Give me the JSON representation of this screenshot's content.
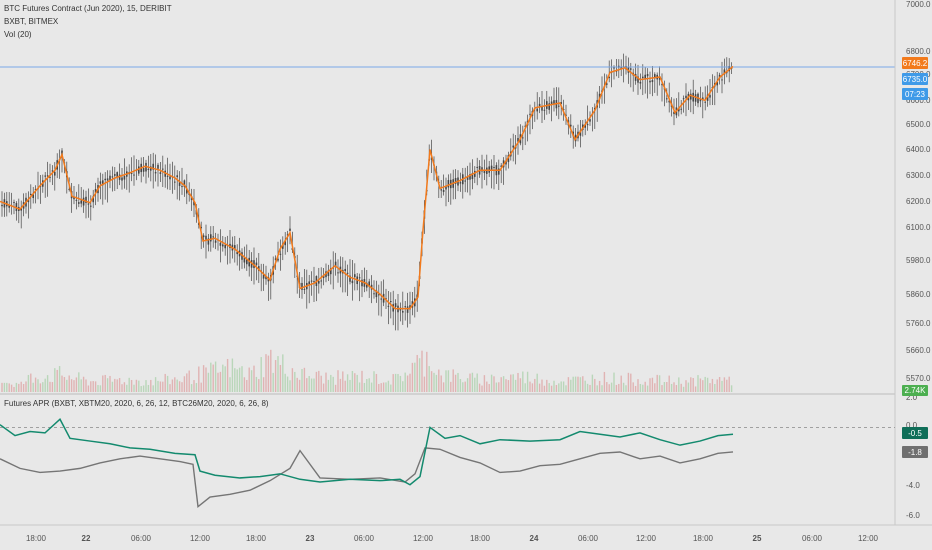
{
  "chart_data": [
    {
      "type": "candlestick",
      "title": "BTC Futures Contract (Jun 2020), 15, DERIBIT",
      "overlay": "BXBT, BITMEX",
      "volume_label": "Vol (20)",
      "ylim": [
        5520,
        7000
      ],
      "y_ticks": [
        "7000.0",
        "6800.0",
        "6700.0",
        "6600.0",
        "6500.0",
        "6400.0",
        "6300.0",
        "6200.0",
        "6100.0",
        "5980.0",
        "5860.0",
        "5760.0",
        "5660.0",
        "5570.0"
      ],
      "price_line": 6746.2,
      "badges": {
        "last_price": "6746.2",
        "bxbt_price": "6735.0",
        "countdown": "07:23",
        "volume": "2.74K"
      },
      "price_series_orange": [
        [
          0,
          6210
        ],
        [
          20,
          6180
        ],
        [
          40,
          6270
        ],
        [
          55,
          6330
        ],
        [
          62,
          6390
        ],
        [
          72,
          6230
        ],
        [
          90,
          6205
        ],
        [
          100,
          6270
        ],
        [
          115,
          6300
        ],
        [
          130,
          6320
        ],
        [
          145,
          6345
        ],
        [
          160,
          6330
        ],
        [
          175,
          6300
        ],
        [
          185,
          6270
        ],
        [
          195,
          6205
        ],
        [
          203,
          6060
        ],
        [
          215,
          6070
        ],
        [
          235,
          6030
        ],
        [
          255,
          5970
        ],
        [
          270,
          5920
        ],
        [
          280,
          6030
        ],
        [
          290,
          6090
        ],
        [
          300,
          5890
        ],
        [
          315,
          5910
        ],
        [
          335,
          5970
        ],
        [
          350,
          5930
        ],
        [
          365,
          5910
        ],
        [
          380,
          5870
        ],
        [
          395,
          5820
        ],
        [
          410,
          5820
        ],
        [
          418,
          5860
        ],
        [
          423,
          6100
        ],
        [
          430,
          6410
        ],
        [
          440,
          6260
        ],
        [
          460,
          6290
        ],
        [
          480,
          6330
        ],
        [
          500,
          6330
        ],
        [
          520,
          6450
        ],
        [
          535,
          6580
        ],
        [
          560,
          6600
        ],
        [
          575,
          6450
        ],
        [
          595,
          6570
        ],
        [
          610,
          6720
        ],
        [
          625,
          6740
        ],
        [
          640,
          6690
        ],
        [
          660,
          6700
        ],
        [
          675,
          6560
        ],
        [
          690,
          6630
        ],
        [
          705,
          6610
        ],
        [
          720,
          6700
        ],
        [
          733,
          6746
        ]
      ],
      "volume_series": [
        [
          5,
          0.3
        ],
        [
          20,
          0.2
        ],
        [
          30,
          0.4
        ],
        [
          60,
          0.5
        ],
        [
          90,
          0.3
        ],
        [
          120,
          0.35
        ],
        [
          150,
          0.3
        ],
        [
          185,
          0.4
        ],
        [
          200,
          0.5
        ],
        [
          230,
          0.7
        ],
        [
          250,
          0.5
        ],
        [
          270,
          0.95
        ],
        [
          300,
          0.5
        ],
        [
          330,
          0.4
        ],
        [
          360,
          0.45
        ],
        [
          395,
          0.35
        ],
        [
          420,
          0.85
        ],
        [
          430,
          1.0
        ],
        [
          440,
          0.5
        ],
        [
          480,
          0.35
        ],
        [
          520,
          0.45
        ],
        [
          560,
          0.3
        ],
        [
          600,
          0.4
        ],
        [
          640,
          0.35
        ],
        [
          680,
          0.3
        ],
        [
          720,
          0.35
        ]
      ]
    },
    {
      "type": "line",
      "title": "Futures APR (BXBT, XBTM20, 2020, 6, 26, 12, BTC26M20, 2020, 6, 26, 8)",
      "ylim": [
        -7,
        2.3
      ],
      "y_ticks": [
        "2.0",
        "0.0",
        "-4.0",
        "-6.0"
      ],
      "series": [
        {
          "color": "#138a6e",
          "values": [
            [
              0,
              0.2
            ],
            [
              15,
              -0.6
            ],
            [
              30,
              -0.3
            ],
            [
              45,
              -0.4
            ],
            [
              60,
              0.6
            ],
            [
              70,
              -0.8
            ],
            [
              90,
              -1.0
            ],
            [
              110,
              -1.2
            ],
            [
              130,
              -1.5
            ],
            [
              150,
              -1.6
            ],
            [
              175,
              -1.9
            ],
            [
              195,
              -2.0
            ],
            [
              200,
              -3.2
            ],
            [
              215,
              -3.5
            ],
            [
              240,
              -3.7
            ],
            [
              260,
              -3.6
            ],
            [
              280,
              -3.4
            ],
            [
              300,
              -3.8
            ],
            [
              320,
              -4.0
            ],
            [
              350,
              -3.8
            ],
            [
              380,
              -3.9
            ],
            [
              400,
              -3.8
            ],
            [
              410,
              -4.2
            ],
            [
              420,
              -3.6
            ],
            [
              430,
              0.0
            ],
            [
              445,
              -0.8
            ],
            [
              460,
              -0.6
            ],
            [
              480,
              -1.2
            ],
            [
              500,
              -0.9
            ],
            [
              530,
              -1.0
            ],
            [
              560,
              -0.9
            ],
            [
              580,
              -0.3
            ],
            [
              600,
              -0.5
            ],
            [
              620,
              -0.7
            ],
            [
              640,
              -0.4
            ],
            [
              660,
              -0.9
            ],
            [
              680,
              -1.3
            ],
            [
              700,
              -1.0
            ],
            [
              718,
              -0.6
            ],
            [
              733,
              -0.5
            ]
          ]
        },
        {
          "color": "#757575",
          "values": [
            [
              0,
              -2.3
            ],
            [
              20,
              -3.0
            ],
            [
              40,
              -3.3
            ],
            [
              60,
              -3.2
            ],
            [
              80,
              -3.0
            ],
            [
              100,
              -2.6
            ],
            [
              120,
              -2.3
            ],
            [
              140,
              -2.1
            ],
            [
              160,
              -2.3
            ],
            [
              180,
              -2.5
            ],
            [
              193,
              -2.7
            ],
            [
              198,
              -5.8
            ],
            [
              210,
              -5.1
            ],
            [
              230,
              -4.9
            ],
            [
              250,
              -4.6
            ],
            [
              270,
              -3.9
            ],
            [
              290,
              -3.0
            ],
            [
              300,
              -1.7
            ],
            [
              320,
              -3.7
            ],
            [
              350,
              -3.8
            ],
            [
              380,
              -3.7
            ],
            [
              405,
              -4.0
            ],
            [
              415,
              -3.4
            ],
            [
              425,
              -1.5
            ],
            [
              440,
              -1.6
            ],
            [
              460,
              -2.2
            ],
            [
              480,
              -2.6
            ],
            [
              500,
              -3.3
            ],
            [
              520,
              -3.2
            ],
            [
              540,
              -2.8
            ],
            [
              560,
              -2.7
            ],
            [
              580,
              -2.3
            ],
            [
              600,
              -1.9
            ],
            [
              620,
              -1.8
            ],
            [
              640,
              -2.3
            ],
            [
              660,
              -2.1
            ],
            [
              680,
              -2.6
            ],
            [
              700,
              -2.3
            ],
            [
              718,
              -1.9
            ],
            [
              733,
              -1.8
            ]
          ]
        }
      ],
      "dashed_level": 0.0,
      "badges": {
        "green_value": "-0.5",
        "gray_value": "-1.8"
      }
    }
  ],
  "x_axis": {
    "labels": [
      {
        "t": 36,
        "text": "18:00"
      },
      {
        "t": 86,
        "text": "22"
      },
      {
        "t": 141,
        "text": "06:00"
      },
      {
        "t": 200,
        "text": "12:00"
      },
      {
        "t": 256,
        "text": "18:00"
      },
      {
        "t": 310,
        "text": "23"
      },
      {
        "t": 364,
        "text": "06:00"
      },
      {
        "t": 423,
        "text": "12:00"
      },
      {
        "t": 480,
        "text": "18:00"
      },
      {
        "t": 534,
        "text": "24"
      },
      {
        "t": 588,
        "text": "06:00"
      },
      {
        "t": 646,
        "text": "12:00"
      },
      {
        "t": 703,
        "text": "18:00"
      },
      {
        "t": 757,
        "text": "25"
      },
      {
        "t": 812,
        "text": "06:00"
      },
      {
        "t": 868,
        "text": "12:00"
      }
    ],
    "bold": [
      "22",
      "23",
      "24",
      "25"
    ]
  },
  "colors": {
    "background": "#e8e8e8",
    "orange": "#f27a1c",
    "candle": "#444444",
    "price_line": "#7aa9e8",
    "badge_orange": "#f27a1c",
    "badge_blue": "#3f9ae8",
    "badge_green": "#4caf50",
    "badge_teal": "#0f6e58",
    "badge_gray": "#6f6f6f",
    "vol_up": "#b9d6b9",
    "vol_down": "#e0b3b3"
  }
}
